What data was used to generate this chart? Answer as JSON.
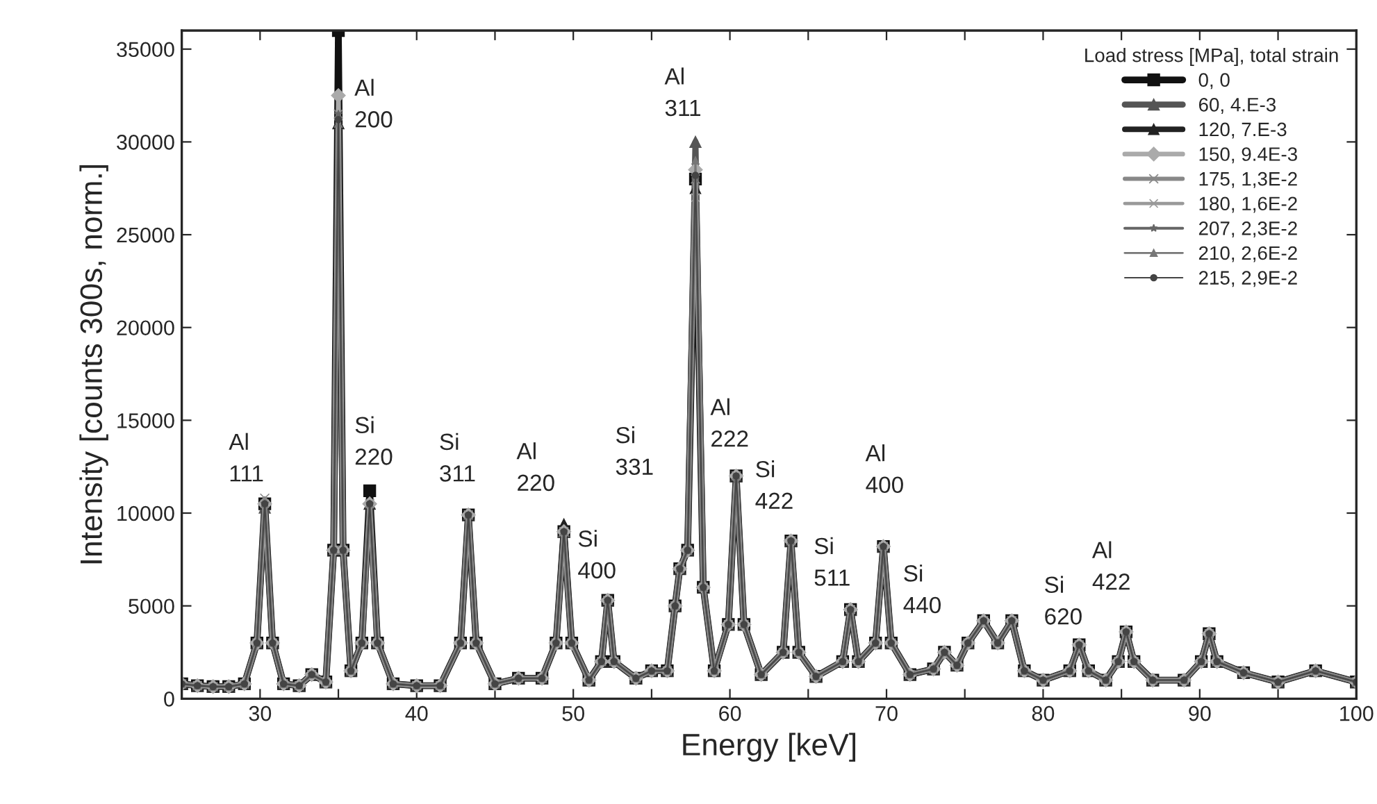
{
  "chart_data": {
    "type": "line",
    "xlabel": "Energy [keV]",
    "ylabel": "Intensity [counts 300s, norm.]",
    "legend_title": "Load stress [MPa], total strain",
    "legend": "top right",
    "grid": false,
    "line_style": "solid",
    "xlim": [
      25,
      100
    ],
    "xticks": [
      {
        "value": 25,
        "label": null
      },
      30,
      {
        "value": 35,
        "label": null
      },
      40,
      {
        "value": 45,
        "label": null
      },
      50,
      {
        "value": 55,
        "label": null
      },
      60,
      {
        "value": 65,
        "label": null
      },
      70,
      {
        "value": 75,
        "label": null
      },
      80,
      {
        "value": 85,
        "label": null
      },
      90,
      {
        "value": 95,
        "label": null
      },
      100
    ],
    "ylim": [
      0,
      36000
    ],
    "yticks": [
      0,
      5000,
      10000,
      15000,
      20000,
      25000,
      30000,
      35000
    ],
    "x": [
      25,
      26,
      27,
      28,
      29,
      29.8,
      30.3,
      30.8,
      31.5,
      32.5,
      33.3,
      34.2,
      34.7,
      35.0,
      35.3,
      35.8,
      36.5,
      37.0,
      37.5,
      38.5,
      40,
      41.5,
      42.8,
      43.3,
      43.8,
      45,
      46.5,
      48,
      48.9,
      49.4,
      49.9,
      51,
      51.8,
      52.2,
      52.6,
      54,
      55,
      56,
      56.5,
      56.8,
      57.3,
      57.8,
      58.3,
      59,
      59.9,
      60.4,
      60.9,
      62,
      63.4,
      63.9,
      64.4,
      65.5,
      67.2,
      67.7,
      68.2,
      69.3,
      69.8,
      70.3,
      71.5,
      73,
      73.7,
      74.5,
      75.2,
      76.2,
      77.1,
      78.0,
      78.8,
      80,
      81.7,
      82.3,
      82.9,
      84,
      84.8,
      85.3,
      85.8,
      87,
      89,
      90.1,
      90.6,
      91.1,
      92.8,
      95,
      97.4,
      100
    ],
    "series": [
      {
        "name": "0, 0",
        "color": "#111111",
        "marker": "square",
        "values": [
          800,
          700,
          650,
          650,
          800,
          3000,
          10500,
          3000,
          800,
          700,
          1300,
          900,
          8000,
          36000,
          8000,
          1500,
          3000,
          11200,
          3000,
          800,
          700,
          700,
          3000,
          9900,
          3000,
          800,
          1100,
          1100,
          3000,
          9000,
          3000,
          1000,
          2000,
          5300,
          2000,
          1100,
          1500,
          1500,
          5000,
          7000,
          8000,
          28000,
          6000,
          1500,
          4000,
          12000,
          4000,
          1300,
          2500,
          8500,
          2500,
          1200,
          2000,
          4800,
          2000,
          3000,
          8200,
          3000,
          1300,
          1600,
          2500,
          1800,
          3000,
          4200,
          3000,
          4200,
          1500,
          1000,
          1500,
          2900,
          1500,
          1000,
          2000,
          3600,
          2000,
          1000,
          1000,
          2000,
          3500,
          2000,
          1400,
          900,
          1500,
          900
        ]
      },
      {
        "name": "60, 4.E-3",
        "color": "#555555",
        "marker": "triangle",
        "values": [
          800,
          700,
          650,
          650,
          800,
          3000,
          10300,
          3000,
          800,
          700,
          1300,
          900,
          8000,
          31000,
          8000,
          1500,
          3000,
          10500,
          3000,
          800,
          700,
          700,
          3000,
          9900,
          3000,
          800,
          1100,
          1100,
          3000,
          9000,
          3000,
          1000,
          2000,
          5300,
          2000,
          1100,
          1500,
          1500,
          5000,
          7000,
          8000,
          30000,
          6000,
          1500,
          4000,
          12000,
          4000,
          1300,
          2500,
          8500,
          2500,
          1200,
          2000,
          4800,
          2000,
          3000,
          8200,
          3000,
          1300,
          1600,
          2500,
          1800,
          3000,
          4200,
          3000,
          4200,
          1500,
          1000,
          1500,
          2900,
          1500,
          1000,
          2000,
          3600,
          2000,
          1000,
          1000,
          2000,
          3500,
          2000,
          1400,
          900,
          1500,
          900
        ]
      },
      {
        "name": "120, 7.E-3",
        "color": "#222222",
        "marker": "triangle",
        "values": [
          800,
          700,
          650,
          650,
          800,
          3000,
          10500,
          3000,
          800,
          700,
          1300,
          900,
          8000,
          31000,
          8000,
          1500,
          3000,
          10500,
          3000,
          800,
          700,
          700,
          3000,
          9900,
          3000,
          800,
          1100,
          1100,
          3000,
          9400,
          3000,
          1000,
          2000,
          5300,
          2000,
          1100,
          1500,
          1500,
          5000,
          7000,
          8000,
          27500,
          6000,
          1500,
          4000,
          12000,
          4000,
          1300,
          2500,
          8500,
          2500,
          1200,
          2000,
          4800,
          2000,
          3000,
          8200,
          3000,
          1300,
          1600,
          2500,
          1800,
          3000,
          4200,
          3000,
          4200,
          1500,
          1000,
          1500,
          2900,
          1500,
          1000,
          2000,
          3600,
          2000,
          1000,
          1000,
          2000,
          3500,
          2000,
          1400,
          900,
          1500,
          900
        ]
      },
      {
        "name": "150, 9.4E-3",
        "color": "#aaaaaa",
        "marker": "diamond",
        "values": [
          800,
          700,
          650,
          650,
          800,
          3000,
          10500,
          3000,
          800,
          700,
          1300,
          900,
          8000,
          32500,
          8000,
          1500,
          3000,
          10500,
          3000,
          800,
          700,
          700,
          3000,
          9900,
          3000,
          800,
          1100,
          1100,
          3000,
          9000,
          3000,
          1000,
          2000,
          5300,
          2000,
          1100,
          1500,
          1500,
          5000,
          7000,
          8000,
          28500,
          6000,
          1500,
          4000,
          12000,
          4000,
          1300,
          2500,
          8500,
          2500,
          1200,
          2000,
          4800,
          2000,
          3000,
          8200,
          3000,
          1300,
          1600,
          2500,
          1800,
          3000,
          4200,
          3000,
          4200,
          1500,
          1000,
          1500,
          2900,
          1500,
          1000,
          2000,
          3600,
          2000,
          1000,
          1000,
          2000,
          3500,
          2000,
          1400,
          900,
          1500,
          900
        ]
      },
      {
        "name": "175, 1,3E-2",
        "color": "#888888",
        "marker": "cross",
        "values": [
          800,
          700,
          650,
          650,
          800,
          3000,
          10800,
          3000,
          800,
          700,
          1300,
          900,
          8000,
          31500,
          8000,
          1500,
          3000,
          10500,
          3000,
          800,
          700,
          700,
          3000,
          9900,
          3000,
          800,
          1100,
          1100,
          3000,
          9000,
          3000,
          1000,
          2000,
          5300,
          2000,
          1100,
          1500,
          1500,
          5000,
          7000,
          8000,
          28000,
          6000,
          1500,
          4000,
          12000,
          4000,
          1300,
          2500,
          8500,
          2500,
          1200,
          2000,
          4800,
          2000,
          3000,
          8200,
          3000,
          1300,
          1600,
          2500,
          1800,
          3000,
          4200,
          3000,
          4200,
          1500,
          1000,
          1500,
          2900,
          1500,
          1000,
          2000,
          3600,
          2000,
          1000,
          1000,
          2000,
          3500,
          2000,
          1400,
          900,
          1500,
          900
        ]
      },
      {
        "name": "180, 1,6E-2",
        "color": "#999999",
        "marker": "cross",
        "values": [
          800,
          700,
          650,
          650,
          800,
          3000,
          10500,
          3000,
          800,
          700,
          1300,
          900,
          8000,
          31000,
          8000,
          1500,
          3000,
          10500,
          3000,
          800,
          700,
          700,
          3000,
          9900,
          3000,
          800,
          1100,
          1100,
          3000,
          9000,
          3000,
          1000,
          2000,
          5300,
          2000,
          1100,
          1500,
          1500,
          5000,
          7000,
          8000,
          27000,
          6000,
          1500,
          4000,
          12000,
          4000,
          1300,
          2500,
          8500,
          2500,
          1200,
          2000,
          4800,
          2000,
          3000,
          8200,
          3000,
          1300,
          1600,
          2500,
          1800,
          3000,
          4200,
          3000,
          4200,
          1500,
          1000,
          1500,
          2900,
          1500,
          1000,
          2000,
          3600,
          2000,
          1000,
          1000,
          2000,
          3500,
          2000,
          1400,
          900,
          1500,
          900
        ]
      },
      {
        "name": "207, 2,3E-2",
        "color": "#666666",
        "marker": "star",
        "values": [
          800,
          700,
          650,
          650,
          800,
          3000,
          10500,
          3000,
          800,
          700,
          1300,
          900,
          8000,
          31500,
          8000,
          1500,
          3000,
          10500,
          3000,
          800,
          700,
          700,
          3000,
          9900,
          3000,
          800,
          1100,
          1100,
          3000,
          9000,
          3000,
          1000,
          2000,
          5300,
          2000,
          1100,
          1500,
          1500,
          5000,
          7000,
          8000,
          28000,
          6000,
          1500,
          4000,
          11800,
          4000,
          1300,
          2500,
          8500,
          2500,
          1200,
          2000,
          4800,
          2000,
          3000,
          8200,
          3000,
          1300,
          1600,
          2500,
          1800,
          3000,
          4200,
          3000,
          4200,
          1500,
          1000,
          1500,
          2900,
          1500,
          1000,
          2000,
          3600,
          2000,
          1000,
          1000,
          2000,
          3500,
          2000,
          1400,
          900,
          1500,
          900
        ]
      },
      {
        "name": "210, 2,6E-2",
        "color": "#777777",
        "marker": "triangle",
        "values": [
          800,
          700,
          650,
          650,
          800,
          3000,
          10500,
          3000,
          800,
          700,
          1300,
          900,
          8000,
          31000,
          8000,
          1500,
          3000,
          10500,
          3000,
          800,
          700,
          700,
          3000,
          9900,
          3000,
          800,
          1100,
          1100,
          3000,
          9000,
          3000,
          1000,
          2000,
          5300,
          2000,
          1100,
          1500,
          1500,
          5000,
          7000,
          8000,
          29000,
          6000,
          1500,
          4000,
          12000,
          4000,
          1300,
          2500,
          8500,
          2500,
          1200,
          2000,
          4800,
          2000,
          3000,
          8200,
          3000,
          1300,
          1600,
          2500,
          1800,
          3000,
          4200,
          3000,
          4200,
          1500,
          1000,
          1500,
          2900,
          1500,
          1000,
          2000,
          3600,
          2000,
          1000,
          1000,
          2000,
          3500,
          2000,
          1400,
          900,
          1500,
          900
        ]
      },
      {
        "name": "215, 2,9E-2",
        "color": "#444444",
        "marker": "circle",
        "values": [
          800,
          700,
          650,
          650,
          800,
          3000,
          10500,
          3000,
          800,
          700,
          1300,
          900,
          8000,
          31200,
          8000,
          1500,
          3000,
          10500,
          3000,
          800,
          700,
          700,
          3000,
          9900,
          3000,
          800,
          1100,
          1100,
          3000,
          9000,
          3000,
          1000,
          2000,
          5300,
          2000,
          1100,
          1500,
          1500,
          5000,
          7000,
          8000,
          28200,
          6000,
          1500,
          4000,
          12000,
          4000,
          1300,
          2500,
          8500,
          2500,
          1200,
          2000,
          4800,
          2000,
          3000,
          8200,
          3000,
          1300,
          1600,
          2500,
          1800,
          3000,
          4200,
          3000,
          4200,
          1500,
          1000,
          1500,
          2900,
          1500,
          1000,
          2000,
          3600,
          2000,
          1000,
          1000,
          2000,
          3500,
          2000,
          1400,
          900,
          1500,
          900
        ]
      }
    ],
    "annotations": [
      "Al\n111",
      "Al\n200",
      "Si\n220",
      "Si\n311",
      "Al\n220",
      "Si\n400",
      "Si\n331",
      "Al\n311",
      "Al\n222",
      "Si\n422",
      "Si\n511",
      "Al\n400",
      "Si\n440",
      "Si\n620",
      "Al\n422"
    ]
  }
}
